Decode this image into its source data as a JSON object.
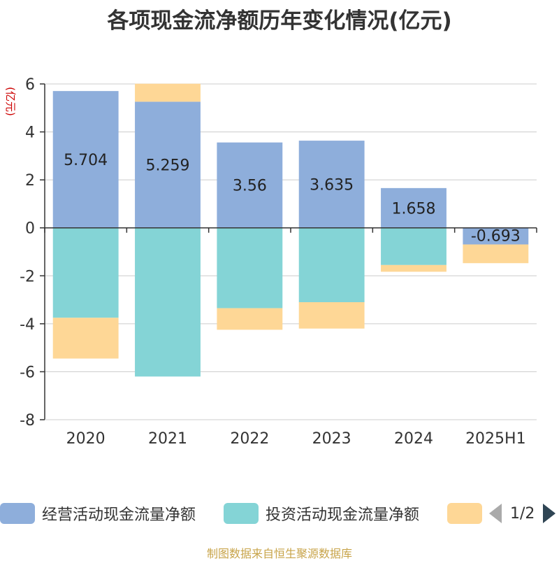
{
  "title": "各项现金流净额历年变化情况(亿元)",
  "source": "制图数据来自恒生聚源数据库",
  "legend_pager": "1/2",
  "colors": {
    "operating": "#8eaedb",
    "investing": "#84d4d6",
    "financing": "#fed796",
    "title": "#333333",
    "ylabel": "#cc0000",
    "source": "#c8a44a"
  },
  "chart_data": {
    "type": "bar",
    "stacked": true,
    "title": "各项现金流净额历年变化情况(亿元)",
    "ylabel": "(亿元)",
    "xlabel": "",
    "categories": [
      "2020",
      "2021",
      "2022",
      "2023",
      "2024",
      "2025H1"
    ],
    "ylim": [
      -8,
      6
    ],
    "yticks": [
      6,
      4,
      2,
      0,
      -2,
      -4,
      -6,
      -8
    ],
    "grid": true,
    "legend_position": "bottom",
    "series": [
      {
        "name": "经营活动现金流量净额",
        "key": "operating",
        "values": [
          5.704,
          5.259,
          3.56,
          3.635,
          1.658,
          -0.693
        ],
        "labels": [
          "5.704",
          "5.259",
          "3.56",
          "3.635",
          "1.658",
          "-0.693"
        ]
      },
      {
        "name": "投资活动现金流量净额",
        "key": "investing",
        "values": [
          -3.75,
          -6.2,
          -3.35,
          -3.1,
          -1.55,
          0
        ],
        "labels": []
      },
      {
        "name": "",
        "key": "financing",
        "values": [
          -1.7,
          0.75,
          -0.9,
          -1.1,
          -0.28,
          -0.78
        ],
        "labels": []
      }
    ]
  }
}
